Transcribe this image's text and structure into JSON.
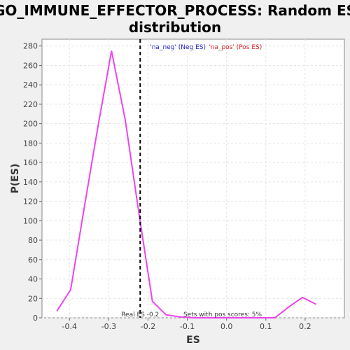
{
  "chart_data": {
    "type": "line",
    "title_line1": "GO_IMMUNE_EFFECTOR_PROCESS: Random ES",
    "title_line2": "distribution",
    "xlabel": "ES",
    "ylabel": "P(ES)",
    "xlim": [
      -0.47,
      0.3
    ],
    "ylim": [
      0,
      287
    ],
    "x_ticks": [
      -0.4,
      -0.3,
      -0.2,
      -0.1,
      0.0,
      0.1,
      0.2
    ],
    "x_tick_labels": [
      "-0.4",
      "-0.3",
      "-0.2",
      "-0.1",
      "0.0",
      "0.1",
      "0.2"
    ],
    "y_ticks": [
      0,
      20,
      40,
      60,
      80,
      100,
      120,
      140,
      160,
      180,
      200,
      220,
      240,
      260,
      280
    ],
    "y_tick_labels": [
      "0",
      "20",
      "40",
      "60",
      "80",
      "100",
      "120",
      "140",
      "160",
      "180",
      "200",
      "220",
      "240",
      "260",
      "280"
    ],
    "grid": true,
    "series": [
      {
        "color": "#ee44ee",
        "x": [
          -0.432,
          -0.397,
          -0.363,
          -0.328,
          -0.293,
          -0.258,
          -0.224,
          -0.189,
          -0.154,
          -0.12,
          -0.085,
          -0.05,
          -0.015,
          0.019,
          0.054,
          0.089,
          0.123,
          0.158,
          0.193,
          0.228
        ],
        "y": [
          7,
          29,
          112,
          196,
          275,
          204,
          110,
          17,
          3,
          1,
          0,
          0,
          0,
          0,
          0,
          0,
          0,
          11,
          21,
          14
        ]
      }
    ],
    "real_es": -0.22,
    "real_es_label": "Real ES -0.2",
    "sets_label": "Sets with pos scores: 5%",
    "legend_neg": "'na_neg' (Neg ES)",
    "legend_pos": "'na_pos' (Pos ES)",
    "legend_position": "top-center"
  }
}
